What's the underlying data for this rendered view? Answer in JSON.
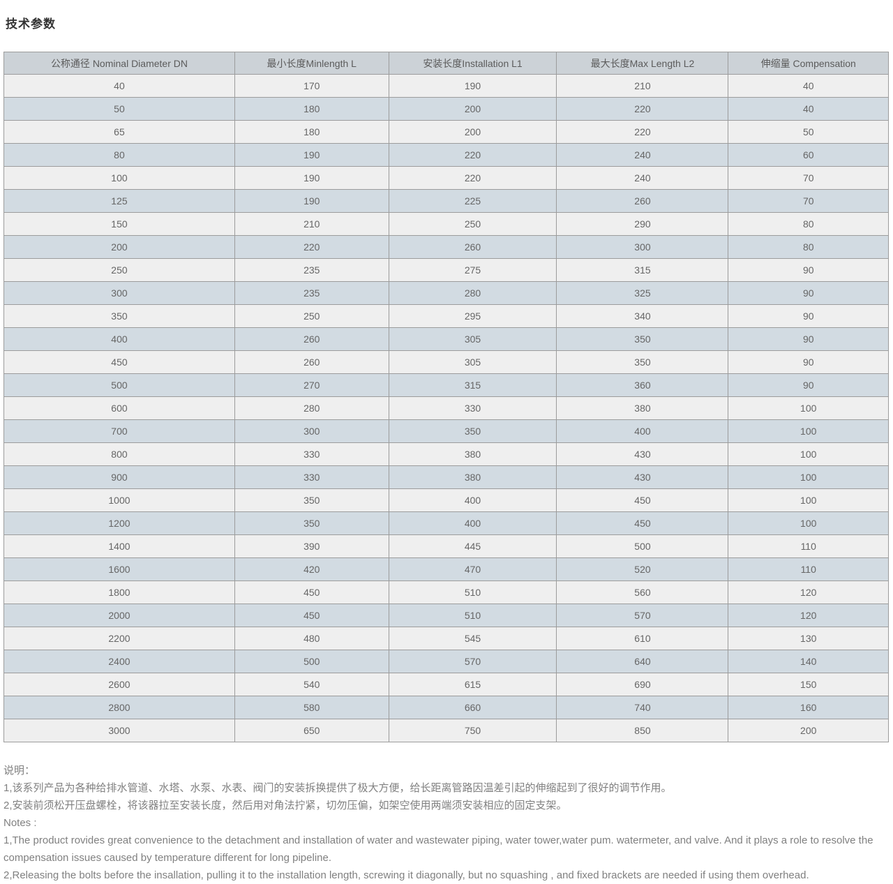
{
  "page": {
    "title": "技术参数"
  },
  "table": {
    "headers": [
      "公称通径 Nominal Diameter DN",
      "最小长度Minlength L",
      "安装长度Installation L1",
      "最大长度Max Length L2",
      "伸缩量 Compensation"
    ],
    "rows": [
      [
        40,
        170,
        190,
        210,
        40
      ],
      [
        50,
        180,
        200,
        220,
        40
      ],
      [
        65,
        180,
        200,
        220,
        50
      ],
      [
        80,
        190,
        220,
        240,
        60
      ],
      [
        100,
        190,
        220,
        240,
        70
      ],
      [
        125,
        190,
        225,
        260,
        70
      ],
      [
        150,
        210,
        250,
        290,
        80
      ],
      [
        200,
        220,
        260,
        300,
        80
      ],
      [
        250,
        235,
        275,
        315,
        90
      ],
      [
        300,
        235,
        280,
        325,
        90
      ],
      [
        350,
        250,
        295,
        340,
        90
      ],
      [
        400,
        260,
        305,
        350,
        90
      ],
      [
        450,
        260,
        305,
        350,
        90
      ],
      [
        500,
        270,
        315,
        360,
        90
      ],
      [
        600,
        280,
        330,
        380,
        100
      ],
      [
        700,
        300,
        350,
        400,
        100
      ],
      [
        800,
        330,
        380,
        430,
        100
      ],
      [
        900,
        330,
        380,
        430,
        100
      ],
      [
        1000,
        350,
        400,
        450,
        100
      ],
      [
        1200,
        350,
        400,
        450,
        100
      ],
      [
        1400,
        390,
        445,
        500,
        110
      ],
      [
        1600,
        420,
        470,
        520,
        110
      ],
      [
        1800,
        450,
        510,
        560,
        120
      ],
      [
        2000,
        450,
        510,
        570,
        120
      ],
      [
        2200,
        480,
        545,
        610,
        130
      ],
      [
        2400,
        500,
        570,
        640,
        140
      ],
      [
        2600,
        540,
        615,
        690,
        150
      ],
      [
        2800,
        580,
        660,
        740,
        160
      ],
      [
        3000,
        650,
        750,
        850,
        200
      ]
    ]
  },
  "notes_cn": {
    "heading": "说明：",
    "lines": [
      "1,该系列产品为各种给排水管道、水塔、水泵、水表、阀门的安装拆换提供了极大方便，给长距离管路因温差引起的伸缩起到了很好的调节作用。",
      "2,安装前须松开压盘螺栓，将该器拉至安装长度，然后用对角法拧紧，切勿压偏，如架空使用两端须安装相应的固定支架。"
    ]
  },
  "notes_en": {
    "heading": "Notes :",
    "lines": [
      "1,The product rovides great convenience to the detachment and installation of water and wastewater piping, water tower,water pum. watermeter, and valve. And it plays a role to resolve the compensation issues caused by temperature different for long pipeline.",
      "2,Releasing the bolts before the insallation, pulling it to the installation length, screwing it diagonally, but no squashing , and fixed brackets are needed if using them overhead."
    ]
  },
  "colors": {
    "header_bg": "#ccd2d7",
    "row_light_bg": "#efefef",
    "row_dark_bg": "#d2dbe2",
    "border": "#9c9c9c",
    "cell_text": "#666666",
    "notes_text": "#808080",
    "title_text": "#333333"
  }
}
